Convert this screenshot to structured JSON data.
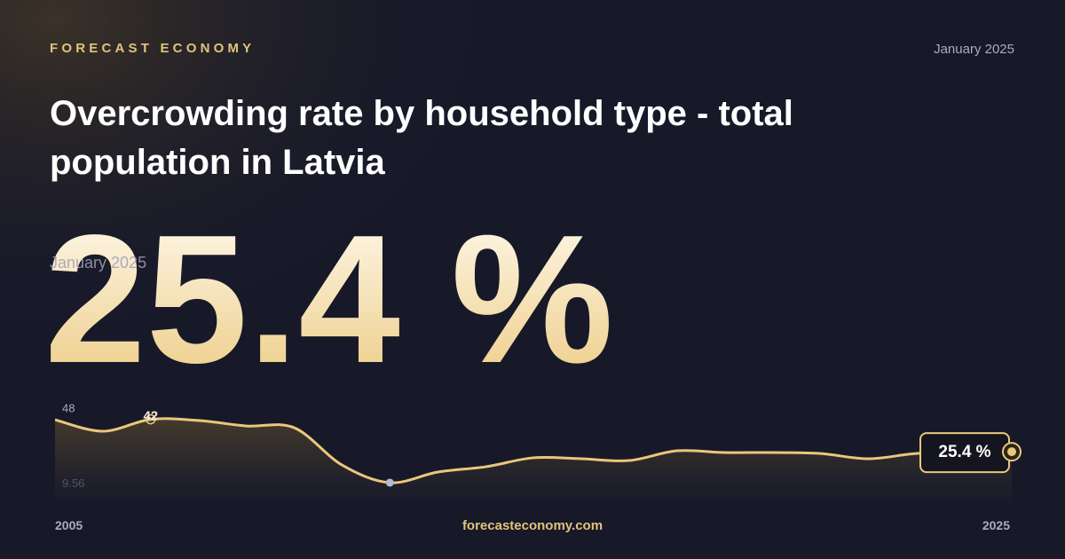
{
  "brand": "FORECAST ECONOMY",
  "date": "January 2025",
  "title_line1": "Overcrowding rate by household type - total",
  "title_line2": "population in Latvia",
  "headline": {
    "value": 25.4,
    "label": "25.4 %",
    "date": "January 2025"
  },
  "footer": "forecasteconomy.com",
  "chart_data": {
    "type": "area",
    "x": [
      2005,
      2006,
      2007,
      2008,
      2009,
      2010,
      2011,
      2012,
      2013,
      2014,
      2015,
      2016,
      2017,
      2018,
      2019,
      2020,
      2021,
      2022,
      2023,
      2024,
      2025
    ],
    "series": [
      {
        "color": "#e9c77b",
        "values": [
          41.8,
          35.9,
          42,
          41.4,
          38.6,
          37.7,
          18.6,
          9.56,
          15,
          17.7,
          22.3,
          21.8,
          20.9,
          25.9,
          25,
          25,
          24.5,
          21.8,
          24.5,
          25,
          25.4
        ]
      }
    ],
    "xlim": [
      2005,
      2025
    ],
    "xticks": [
      2005,
      2025
    ],
    "ylim": [
      0,
      50
    ],
    "yticks": [
      48,
      9.56
    ],
    "annotations": [
      {
        "x": 2007,
        "label": "42"
      }
    ]
  }
}
